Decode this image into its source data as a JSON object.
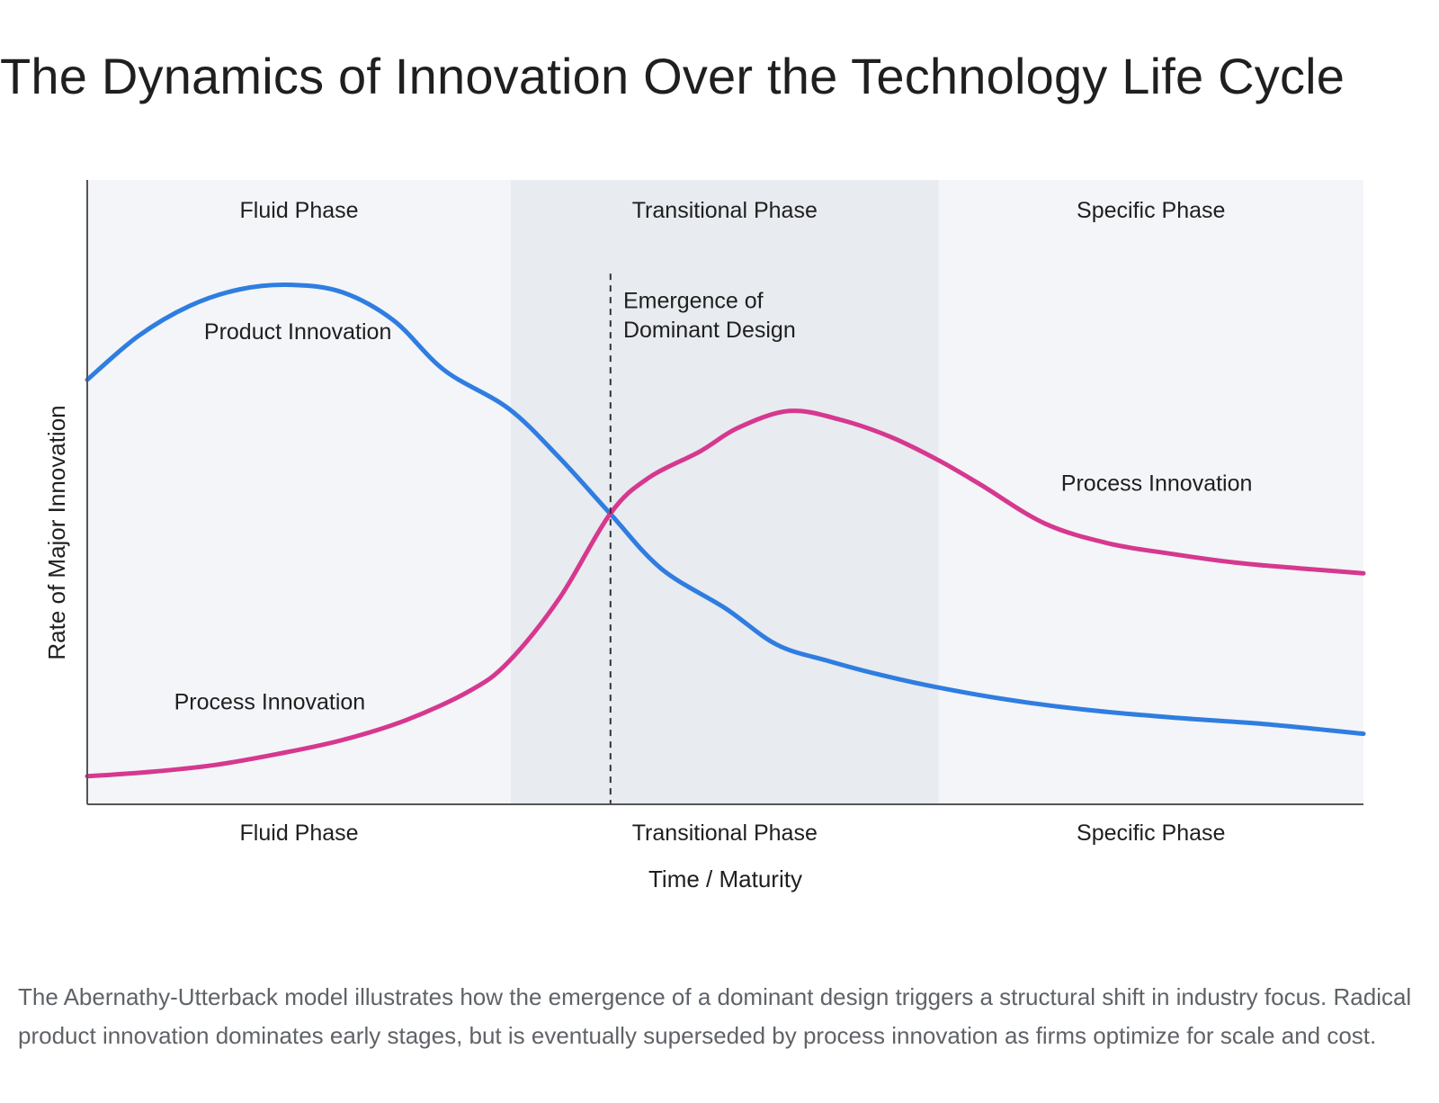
{
  "title": "The Dynamics of Innovation Over the Technology Life Cycle",
  "caption": "The Abernathy-Utterback model illustrates how the emergence of a dominant design triggers a structural shift in industry focus. Radical product innovation dominates early stages, but is eventually superseded by process innovation as firms optimize for scale and cost.",
  "chart_data": {
    "type": "line",
    "xlabel": "Time / Maturity",
    "ylabel": "Rate of Major Innovation",
    "xlim": [
      0,
      100
    ],
    "ylim": [
      0,
      100
    ],
    "grid": false,
    "legend": "none",
    "phases": [
      {
        "name": "Fluid Phase",
        "x_start": 0,
        "x_end": 33.2,
        "color": "#f3f5f8"
      },
      {
        "name": "Transitional Phase",
        "x_start": 33.2,
        "x_end": 66.7,
        "color": "#e8ebef"
      },
      {
        "name": "Specific Phase",
        "x_start": 66.7,
        "x_end": 100,
        "color": "#f3f5f8"
      }
    ],
    "tick_labels": [
      "Fluid Phase",
      "Transitional Phase",
      "Specific Phase"
    ],
    "series": [
      {
        "name": "Product Innovation",
        "color": "#2f7de1",
        "x": [
          0,
          4,
          8,
          12,
          16,
          20,
          24,
          28,
          33,
          37,
          41,
          45,
          50,
          54,
          58,
          62,
          66.7,
          72,
          78,
          85,
          92,
          100
        ],
        "y": [
          68,
          75,
          79.8,
          82.5,
          83.2,
          82,
          77.5,
          69.5,
          63.4,
          55.5,
          46.5,
          37.7,
          31.4,
          25.6,
          23,
          20.8,
          18.7,
          16.8,
          15.2,
          13.9,
          12.9,
          11.3
        ]
      },
      {
        "name": "Process Innovation",
        "color": "#d6388f",
        "x": [
          0,
          5,
          10,
          15,
          20,
          25,
          30,
          33,
          37,
          41,
          44,
          48,
          51,
          55,
          59,
          63,
          66.7,
          70,
          75,
          80,
          85,
          90,
          95,
          100
        ],
        "y": [
          4.5,
          5.2,
          6.3,
          8.1,
          10.3,
          13.5,
          18.2,
          22.8,
          33,
          46.6,
          52.3,
          56.5,
          60.3,
          63,
          61.6,
          58.8,
          55.1,
          51.2,
          45,
          41.8,
          40.1,
          38.7,
          37.8,
          37
        ]
      }
    ],
    "dominant_design_x": 41,
    "annotations": [
      {
        "text": "Product Innovation",
        "x": 16.5,
        "y": 74.5
      },
      {
        "text": "Process Innovation",
        "x": 14.3,
        "y": 15.2
      },
      {
        "text": "Process Innovation",
        "x": 83.8,
        "y": 50.2
      },
      {
        "text": "Emergence of",
        "x": 42,
        "y": 79.5
      },
      {
        "text": "Dominant Design",
        "x": 42,
        "y": 74.8
      }
    ]
  }
}
